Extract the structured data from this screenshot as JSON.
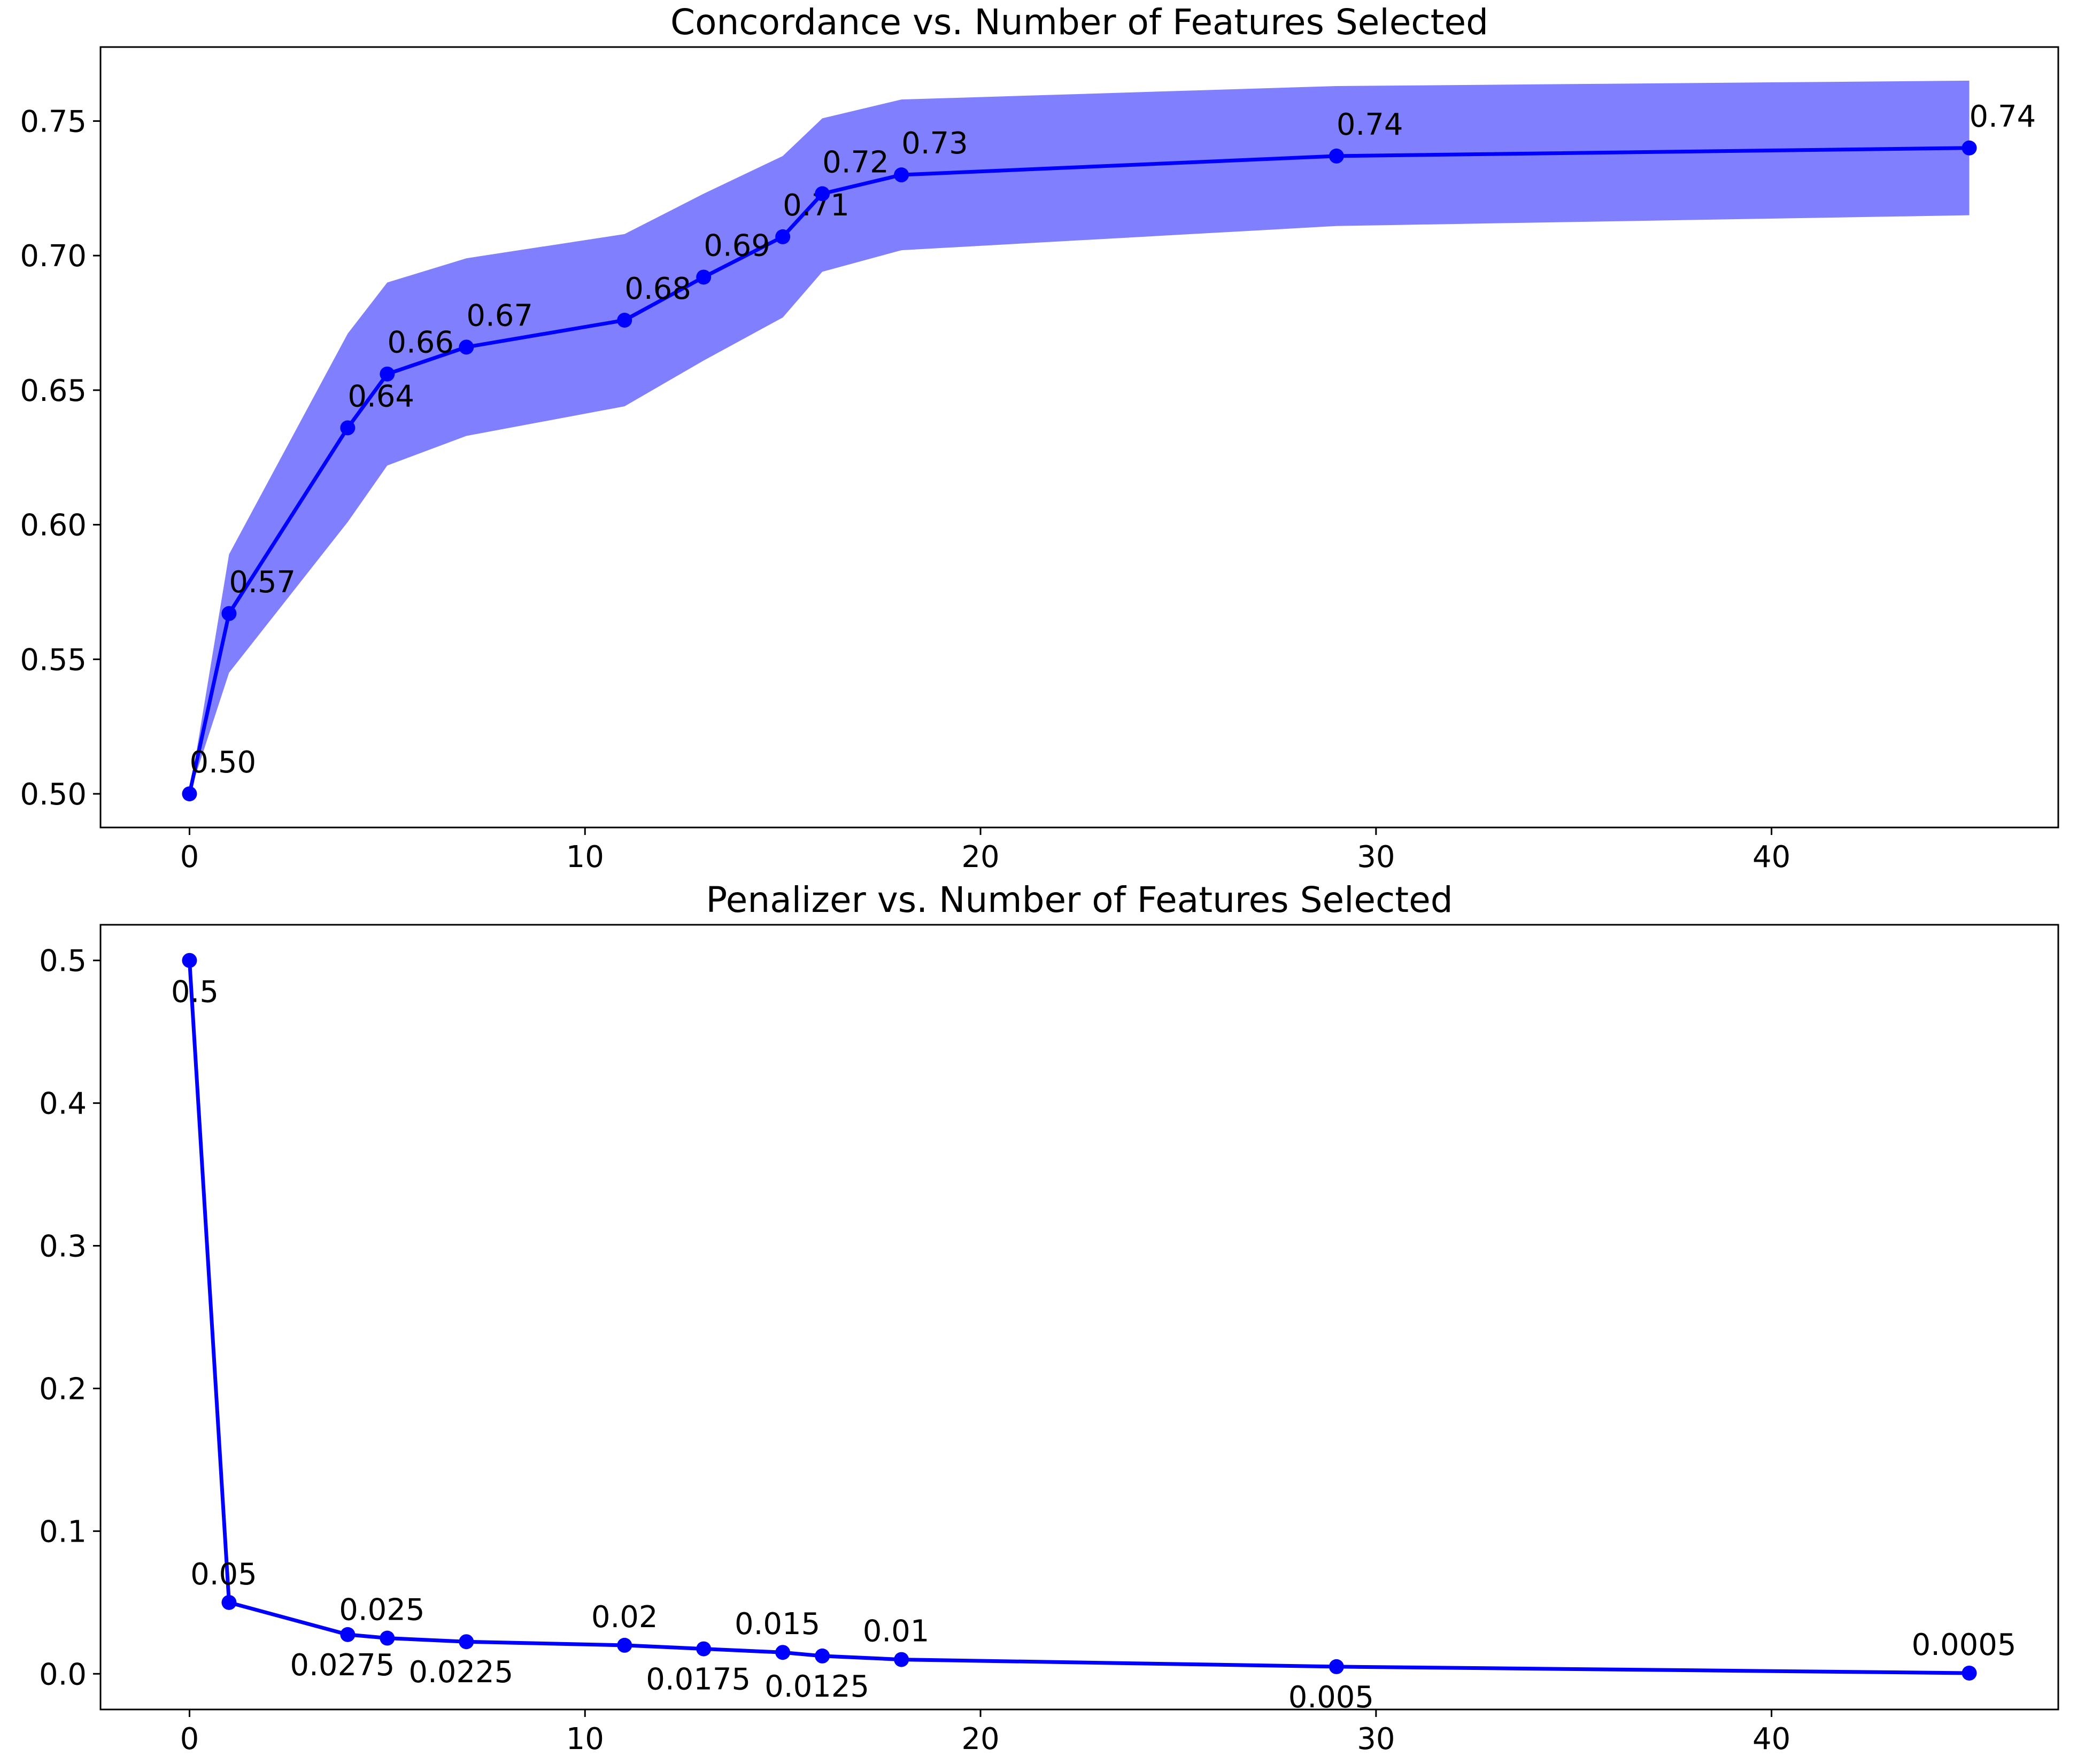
{
  "chart_data": [
    {
      "type": "line",
      "title": "Concordance vs. Number of Features Selected",
      "xlabel": "",
      "ylabel": "",
      "x": [
        0,
        1,
        4,
        5,
        7,
        11,
        13,
        15,
        16,
        18,
        29,
        45
      ],
      "series": [
        {
          "values": [
            0.5,
            0.567,
            0.636,
            0.656,
            0.666,
            0.676,
            0.692,
            0.707,
            0.723,
            0.73,
            0.737,
            0.74
          ],
          "lower": [
            0.5,
            0.545,
            0.601,
            0.622,
            0.633,
            0.644,
            0.661,
            0.677,
            0.694,
            0.702,
            0.711,
            0.715
          ],
          "upper": [
            0.5,
            0.589,
            0.671,
            0.69,
            0.699,
            0.708,
            0.723,
            0.737,
            0.751,
            0.758,
            0.763,
            0.765
          ],
          "labels": [
            "0.50",
            "0.57",
            "0.64",
            "0.66",
            "0.67",
            "0.68",
            "0.69",
            "0.71",
            "0.72",
            "0.73",
            "0.74",
            "0.74"
          ]
        }
      ],
      "xlim": [
        -2.25,
        47.25
      ],
      "ylim": [
        0.4875,
        0.7775
      ],
      "xticks": [
        0,
        10,
        20,
        30,
        40
      ],
      "yticks": [
        0.5,
        0.55,
        0.6,
        0.65,
        0.7,
        0.75
      ],
      "ytick_labels": [
        "0.50",
        "0.55",
        "0.60",
        "0.65",
        "0.70",
        "0.75"
      ],
      "xtick_labels": [
        "0",
        "10",
        "20",
        "30",
        "40"
      ],
      "grid": false,
      "line_color": "#0000ff",
      "band_color": "#8080ff"
    },
    {
      "type": "line",
      "title": "Penalizer vs. Number of Features Selected",
      "xlabel": "",
      "ylabel": "",
      "x": [
        0,
        1,
        4,
        5,
        7,
        11,
        13,
        15,
        16,
        18,
        29,
        45
      ],
      "series": [
        {
          "values": [
            0.5,
            0.05,
            0.0275,
            0.025,
            0.0225,
            0.02,
            0.0175,
            0.015,
            0.0125,
            0.01,
            0.005,
            0.0005
          ],
          "labels": [
            "0.5",
            "0.05",
            "0.0275",
            "0.025",
            "0.0225",
            "0.02",
            "0.0175",
            "0.015",
            "0.0125",
            "0.01",
            "0.005",
            "0.0005"
          ]
        }
      ],
      "xlim": [
        -2.25,
        47.25
      ],
      "ylim": [
        -0.025,
        0.525
      ],
      "xticks": [
        0,
        10,
        20,
        30,
        40
      ],
      "yticks": [
        0.0,
        0.1,
        0.2,
        0.3,
        0.4,
        0.5
      ],
      "ytick_labels": [
        "0.0",
        "0.1",
        "0.2",
        "0.3",
        "0.4",
        "0.5"
      ],
      "xtick_labels": [
        "0",
        "10",
        "20",
        "30",
        "40"
      ],
      "grid": false,
      "line_color": "#0000ff"
    }
  ]
}
